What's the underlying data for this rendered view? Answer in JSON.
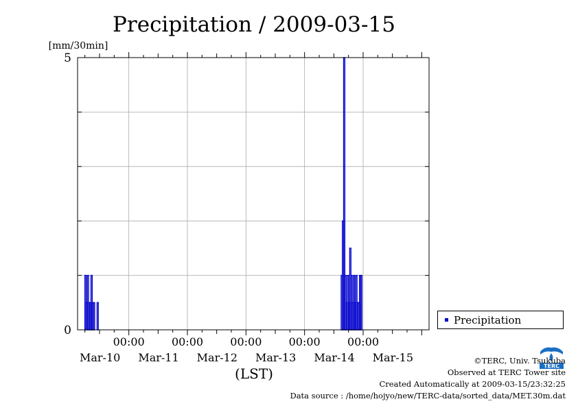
{
  "chart_data": {
    "type": "bar",
    "title": "Precipitation / 2009-03-15",
    "ylabel": "[mm/30min]",
    "xlabel": "(LST)",
    "ylim": [
      0,
      5
    ],
    "y_tick_labels": [
      "0",
      "5"
    ],
    "x_time_labels": [
      "00:00",
      "00:00",
      "00:00",
      "00:00",
      "00:00"
    ],
    "x_date_labels": [
      "Mar-10",
      "Mar-11",
      "Mar-12",
      "Mar-13",
      "Mar-14",
      "Mar-15"
    ],
    "grid": true,
    "legend": "right",
    "series": [
      {
        "name": "Precipitation",
        "color": "#0000cc",
        "points": [
          [
            "2009-03-09 06:00",
            1.0
          ],
          [
            "2009-03-09 06:30",
            0.5
          ],
          [
            "2009-03-09 07:00",
            1.0
          ],
          [
            "2009-03-09 07:30",
            0.5
          ],
          [
            "2009-03-09 08:00",
            0.5
          ],
          [
            "2009-03-09 08:30",
            1.0
          ],
          [
            "2009-03-09 09:00",
            0.5
          ],
          [
            "2009-03-09 09:30",
            0.5
          ],
          [
            "2009-03-09 11:00",
            0.5
          ],
          [
            "2009-03-13 15:00",
            1.0
          ],
          [
            "2009-03-13 15:30",
            2.0
          ],
          [
            "2009-03-13 16:00",
            5.0
          ],
          [
            "2009-03-13 16:30",
            1.0
          ],
          [
            "2009-03-13 17:00",
            0.5
          ],
          [
            "2009-03-13 17:30",
            1.0
          ],
          [
            "2009-03-13 18:00",
            0.5
          ],
          [
            "2009-03-13 18:30",
            1.5
          ],
          [
            "2009-03-13 19:00",
            1.0
          ],
          [
            "2009-03-13 19:30",
            0.5
          ],
          [
            "2009-03-13 20:00",
            1.0
          ],
          [
            "2009-03-13 20:30",
            0.5
          ],
          [
            "2009-03-13 21:00",
            1.0
          ],
          [
            "2009-03-13 21:30",
            0.5
          ],
          [
            "2009-03-13 22:00",
            0.5
          ],
          [
            "2009-03-13 22:30",
            1.0
          ],
          [
            "2009-03-13 23:00",
            1.0
          ]
        ]
      }
    ]
  },
  "footer": {
    "copyright": "©TERC, Univ. Tsukuba",
    "observed": "Observed at TERC Tower site",
    "created": "Created Automatically at 2009-03-15/23:32:25",
    "source": "Data source : /home/hojyo/new/TERC-data/sorted_data/MET.30m.dat"
  },
  "logo": {
    "text": "TERC",
    "color": "#1a6fc4"
  }
}
